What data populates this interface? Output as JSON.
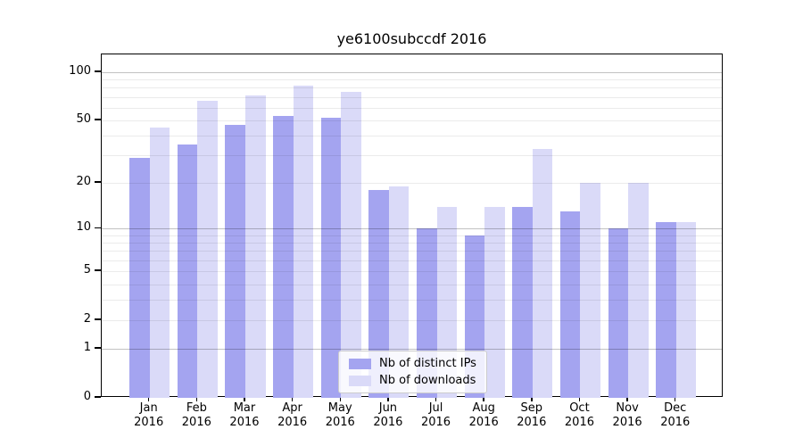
{
  "chart_data": {
    "type": "bar",
    "title": "ye6100subccdf 2016",
    "categories": [
      "Jan 2016",
      "Feb 2016",
      "Mar 2016",
      "Apr 2016",
      "May 2016",
      "Jun 2016",
      "Jul 2016",
      "Aug 2016",
      "Sep 2016",
      "Oct 2016",
      "Nov 2016",
      "Dec 2016"
    ],
    "series": [
      {
        "name": "Nb of distinct IPs",
        "color": "#a4a4f0",
        "values": [
          29,
          35,
          47,
          53,
          52,
          18,
          10,
          9,
          14,
          13,
          10,
          11
        ]
      },
      {
        "name": "Nb of downloads",
        "color": "#dadaf8",
        "values": [
          45,
          66,
          72,
          82,
          75,
          19,
          14,
          14,
          33,
          20,
          20,
          11
        ]
      }
    ],
    "yscale": "log10(1+y)",
    "yticks": [
      100,
      50,
      20,
      10,
      5,
      2,
      1,
      0
    ],
    "ytick_labels": [
      "100",
      "50",
      "20",
      "10",
      "5",
      "2",
      "1",
      "0"
    ],
    "major_gridlines": [
      1,
      10,
      100
    ],
    "minor_gridlines": [
      2,
      3,
      4,
      5,
      6,
      7,
      8,
      9,
      20,
      30,
      40,
      50,
      60,
      70,
      80,
      90
    ],
    "ylim": [
      0,
      128
    ],
    "grid": true,
    "legend": {
      "labels": [
        "Nb of distinct IPs",
        "Nb of downloads"
      ],
      "position": "lower center"
    }
  }
}
